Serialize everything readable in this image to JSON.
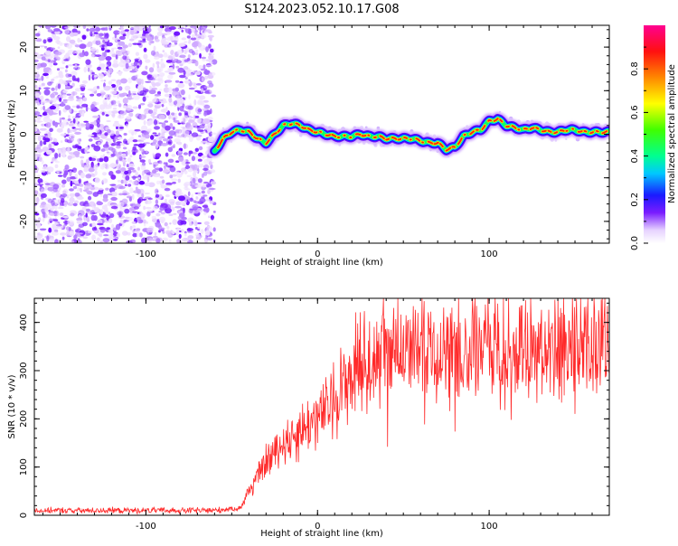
{
  "title": "S124.2023.052.10.17.G08",
  "colorbar": {
    "label": "Normalized spectral amplitude",
    "ticks": [
      "0.0",
      "0.2",
      "0.4",
      "0.6",
      "0.8"
    ],
    "tick_values": [
      0.0,
      0.2,
      0.4,
      0.6,
      0.8
    ],
    "range": [
      0,
      1
    ]
  },
  "chart_data": [
    {
      "type": "heatmap",
      "xlabel": "Height of straight line (km)",
      "ylabel": "Frequency (Hz)",
      "xlim": [
        -165,
        170
      ],
      "ylim": [
        -25,
        25
      ],
      "xticks": [
        "-100",
        "0",
        "100"
      ],
      "xtick_values": [
        -100,
        0,
        100
      ],
      "yticks": [
        "-20",
        "-10",
        "0",
        "10",
        "20"
      ],
      "ytick_values": [
        -20,
        -10,
        0,
        10,
        20
      ],
      "noise_region_x": [
        -165,
        -60
      ],
      "ridge": {
        "x": [
          -60,
          -55,
          -50,
          -45,
          -40,
          -35,
          -30,
          -25,
          -20,
          -15,
          -10,
          -5,
          0,
          5,
          10,
          15,
          20,
          25,
          30,
          35,
          40,
          45,
          50,
          55,
          60,
          65,
          70,
          75,
          80,
          85,
          90,
          95,
          100,
          105,
          110,
          115,
          120,
          125,
          130,
          135,
          140,
          145,
          150,
          155,
          160,
          165,
          170
        ],
        "y": [
          -4,
          -1,
          0.5,
          1,
          0.5,
          -1,
          -2,
          0,
          2,
          2.5,
          2,
          1,
          0.5,
          0,
          -0.5,
          -0.5,
          -0.5,
          0,
          -0.5,
          -0.5,
          -1,
          -1,
          -1,
          -1,
          -1.5,
          -2,
          -2,
          -3.5,
          -3,
          -0.5,
          0.5,
          1,
          3,
          3.5,
          2,
          1.5,
          1,
          1.5,
          1,
          0.5,
          0.5,
          1,
          1,
          0.5,
          0.5,
          0.5,
          0.5
        ]
      }
    },
    {
      "type": "line",
      "xlabel": "Height of straight line (km)",
      "ylabel": "SNR (10 * v/v)",
      "xlim": [
        -165,
        170
      ],
      "ylim": [
        0,
        450
      ],
      "xticks": [
        "-100",
        "0",
        "100"
      ],
      "xtick_values": [
        -100,
        0,
        100
      ],
      "yticks": [
        "0",
        "100",
        "200",
        "300",
        "400"
      ],
      "ytick_values": [
        0,
        100,
        200,
        300,
        400
      ],
      "series": [
        {
          "color": "#ff2a2a",
          "envelope_x": [
            -165,
            -60,
            -45,
            -40,
            -30,
            -20,
            -10,
            0,
            10,
            20,
            30,
            40,
            60,
            80,
            100,
            120,
            140,
            160,
            170
          ],
          "envelope_y": [
            10,
            10,
            15,
            50,
            110,
            150,
            175,
            200,
            240,
            300,
            330,
            340,
            335,
            345,
            350,
            340,
            345,
            345,
            340
          ]
        }
      ]
    }
  ]
}
